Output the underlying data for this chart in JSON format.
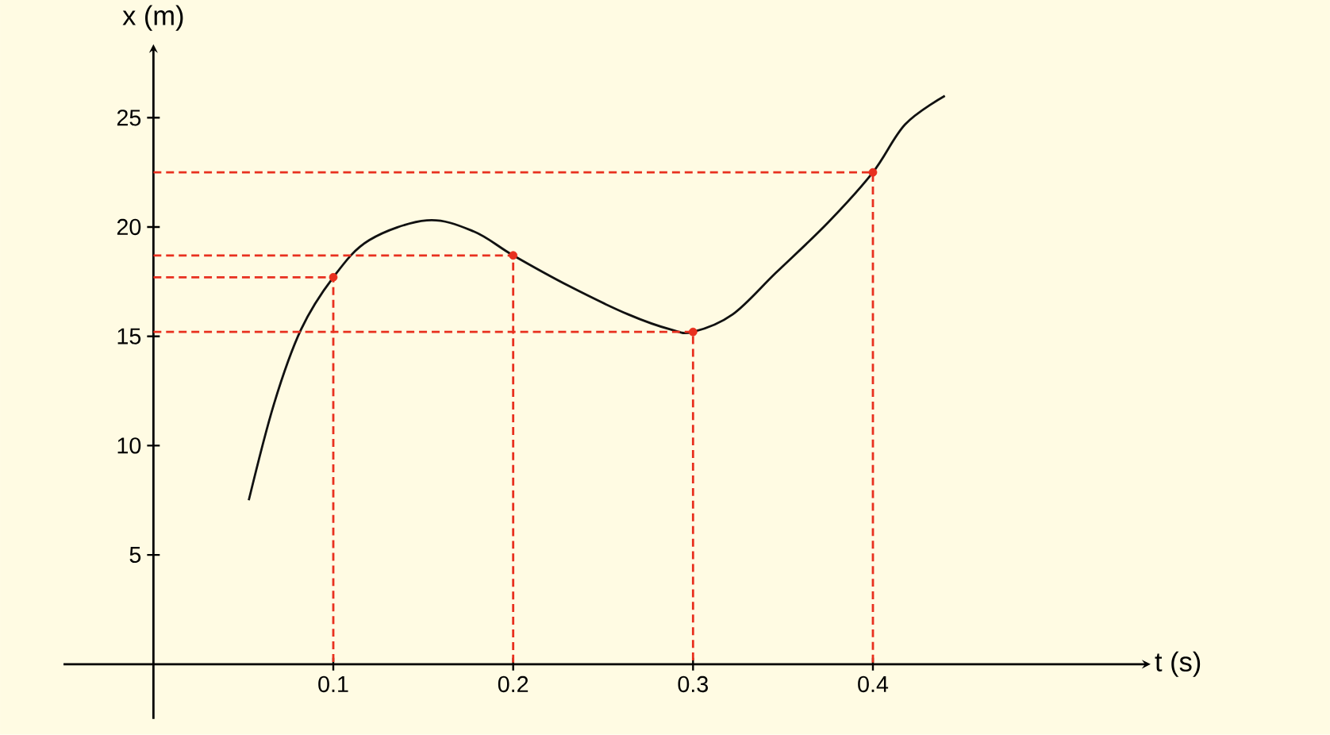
{
  "chart_data": {
    "type": "line",
    "xlabel": "t (s)",
    "ylabel": "x (m)",
    "xlim": [
      -0.05,
      0.55
    ],
    "ylim": [
      -2.5,
      28
    ],
    "xticks": [
      {
        "value": 0.1,
        "label": "0.1"
      },
      {
        "value": 0.2,
        "label": "0.2"
      },
      {
        "value": 0.3,
        "label": "0.3"
      },
      {
        "value": 0.4,
        "label": "0.4"
      }
    ],
    "yticks": [
      5,
      10,
      15,
      20,
      25
    ],
    "grid": false,
    "series": [
      {
        "type": "line",
        "color": "#111111",
        "marker": "none",
        "line_style": "solid",
        "x": [
          0.053,
          0.067,
          0.082,
          0.1,
          0.12,
          0.152,
          0.178,
          0.2,
          0.231,
          0.264,
          0.288,
          0.3,
          0.322,
          0.346,
          0.375,
          0.4,
          0.418,
          0.44
        ],
        "values": [
          7.5,
          11.9,
          15.3,
          17.7,
          19.4,
          20.3,
          19.8,
          18.7,
          17.3,
          16.0,
          15.3,
          15.2,
          16.0,
          17.9,
          20.2,
          22.5,
          24.7,
          26.0
        ]
      },
      {
        "type": "line",
        "color": "#e8301f",
        "marker": "none",
        "line_style": "dashed",
        "x": [
          0,
          0.1,
          0.1
        ],
        "values": [
          17.7,
          17.7,
          0
        ]
      },
      {
        "type": "line",
        "color": "#e8301f",
        "marker": "none",
        "line_style": "dashed",
        "x": [
          0,
          0.2,
          0.2
        ],
        "values": [
          18.7,
          18.7,
          0
        ]
      },
      {
        "type": "line",
        "color": "#e8301f",
        "marker": "none",
        "line_style": "dashed",
        "x": [
          0,
          0.3,
          0.3
        ],
        "values": [
          15.2,
          15.2,
          0
        ]
      },
      {
        "type": "line",
        "color": "#e8301f",
        "marker": "none",
        "line_style": "dashed",
        "x": [
          0,
          0.4,
          0.4
        ],
        "values": [
          22.5,
          22.5,
          0
        ]
      },
      {
        "type": "scatter",
        "color": "#e8301f",
        "marker": "circle",
        "x": [
          0.1,
          0.2,
          0.3,
          0.4
        ],
        "values": [
          17.7,
          18.7,
          15.2,
          22.5
        ]
      }
    ]
  }
}
